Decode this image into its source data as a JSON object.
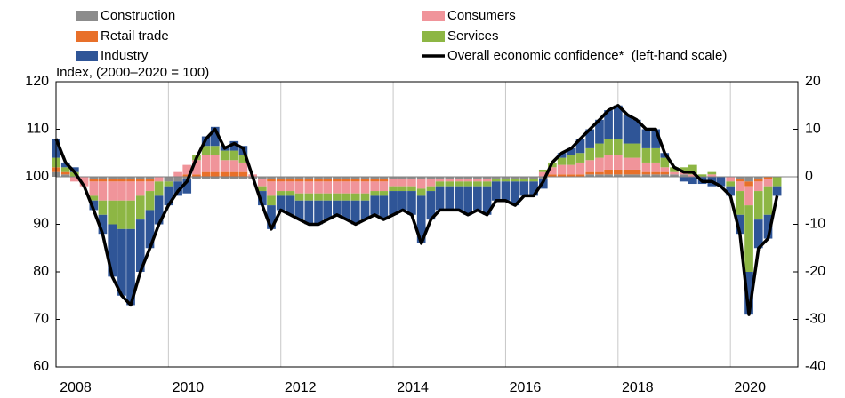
{
  "chart_data": {
    "type": "bar",
    "y_label": "Index, (2000–2020 = 100)",
    "x": [
      2008.0,
      2008.17,
      2008.33,
      2008.5,
      2008.67,
      2008.83,
      2009.0,
      2009.17,
      2009.33,
      2009.5,
      2009.67,
      2009.83,
      2010.0,
      2010.17,
      2010.33,
      2010.5,
      2010.67,
      2010.83,
      2011.0,
      2011.17,
      2011.33,
      2011.5,
      2011.67,
      2011.83,
      2012.0,
      2012.17,
      2012.33,
      2012.5,
      2012.67,
      2012.83,
      2013.0,
      2013.17,
      2013.33,
      2013.5,
      2013.67,
      2013.83,
      2014.0,
      2014.17,
      2014.33,
      2014.5,
      2014.67,
      2014.83,
      2015.0,
      2015.17,
      2015.33,
      2015.5,
      2015.67,
      2015.83,
      2016.0,
      2016.17,
      2016.33,
      2016.5,
      2016.67,
      2016.83,
      2017.0,
      2017.17,
      2017.33,
      2017.5,
      2017.67,
      2017.83,
      2018.0,
      2018.17,
      2018.33,
      2018.5,
      2018.67,
      2018.83,
      2019.0,
      2019.17,
      2019.33,
      2019.5,
      2019.67,
      2019.83,
      2020.0,
      2020.17,
      2020.33,
      2020.5,
      2020.67,
      2020.83
    ],
    "series": [
      {
        "name": "Construction",
        "color": "#8c8c8c",
        "axis": "y2",
        "values": [
          1,
          0.5,
          0,
          0,
          -0.5,
          -0.5,
          -0.5,
          -0.5,
          -0.5,
          -0.5,
          -0.5,
          0,
          -1,
          -1,
          -0.5,
          -0.5,
          -0.5,
          -0.5,
          -0.5,
          -0.5,
          -0.5,
          -0.5,
          -0.5,
          -0.5,
          -0.5,
          -0.5,
          -0.5,
          -0.5,
          -0.5,
          -0.5,
          -0.5,
          -0.5,
          -0.5,
          -0.5,
          -0.5,
          -0.5,
          -0.5,
          -0.5,
          -0.5,
          -0.5,
          -0.5,
          -0.5,
          -0.5,
          -0.5,
          -0.5,
          -0.5,
          -0.5,
          -0.5,
          -0.5,
          -0.5,
          -0.5,
          -0.5,
          -0.5,
          0,
          0,
          0,
          0,
          0.5,
          0.5,
          0.5,
          0.5,
          0.5,
          0.5,
          0.5,
          0.5,
          0.5,
          0.5,
          0.5,
          0,
          0,
          0,
          0,
          0,
          -0.5,
          -1,
          -0.5,
          0,
          0
        ]
      },
      {
        "name": "Retail trade",
        "color": "#e8702a",
        "axis": "y2",
        "values": [
          1,
          0.5,
          0,
          0,
          -0.5,
          -0.5,
          -0.5,
          -0.5,
          -0.5,
          -0.5,
          -0.5,
          0,
          0,
          0,
          0.5,
          0.5,
          1,
          1,
          1,
          1,
          1,
          0,
          0,
          -0.5,
          -0.5,
          -0.5,
          -0.5,
          -0.5,
          -0.5,
          -0.5,
          -0.5,
          -0.5,
          -0.5,
          -0.5,
          -0.5,
          -0.5,
          0,
          0,
          0,
          0,
          0,
          0,
          0,
          0,
          0,
          0,
          0,
          0,
          0,
          0,
          0,
          0,
          0,
          0.5,
          0.5,
          0.5,
          0.5,
          0.5,
          0.5,
          1,
          1,
          1,
          1,
          0.5,
          0.5,
          0.5,
          0,
          0,
          0,
          0,
          0,
          0,
          0,
          -0.5,
          -1,
          -0.5,
          -0.5,
          0
        ]
      },
      {
        "name": "Consumers",
        "color": "#f0949a",
        "axis": "y2",
        "values": [
          0,
          0,
          -1,
          -2,
          -3,
          -4,
          -4,
          -4,
          -4,
          -3,
          -2,
          -1,
          0,
          1,
          2,
          3,
          3.5,
          3.5,
          2.5,
          2.5,
          2,
          0.5,
          -1.5,
          -3,
          -2,
          -2,
          -2.5,
          -2.5,
          -2.5,
          -2.5,
          -2.5,
          -2.5,
          -2.5,
          -2.5,
          -2,
          -2,
          -1.5,
          -1.5,
          -1.5,
          -2,
          -1.5,
          -0.5,
          -0.5,
          -0.5,
          -0.5,
          -0.5,
          -0.5,
          0,
          0,
          0,
          0,
          0,
          1,
          1.5,
          2,
          2,
          2.5,
          2.5,
          3,
          3,
          3,
          2.5,
          2.5,
          2,
          2,
          1,
          0.5,
          0.5,
          0.5,
          0,
          0.5,
          0,
          -1,
          -2,
          -4,
          -2,
          -1.5,
          0
        ]
      },
      {
        "name": "Services",
        "color": "#8db644",
        "axis": "y2",
        "values": [
          2,
          1,
          1,
          0,
          -1,
          -3,
          -5,
          -6,
          -6,
          -5,
          -4,
          -3,
          -1,
          0,
          0,
          1,
          2,
          2,
          2,
          2,
          1.5,
          0,
          -1,
          -2,
          -1,
          -1,
          -1.5,
          -1.5,
          -1.5,
          -1.5,
          -1.5,
          -1.5,
          -1.5,
          -1.5,
          -1,
          -1,
          -1,
          -1,
          -1,
          -1.5,
          -1,
          -1,
          -1,
          -1,
          -1,
          -1,
          -1,
          -0.5,
          -0.5,
          -0.5,
          -0.5,
          -0.5,
          0.5,
          1,
          1.5,
          2,
          2,
          2.5,
          3,
          3.5,
          3.5,
          3,
          3,
          3,
          3,
          2,
          1,
          1,
          2,
          0.5,
          0.5,
          0,
          -1,
          -5,
          -14,
          -6,
          -6,
          -2
        ]
      },
      {
        "name": "Industry",
        "color": "#2f5597",
        "axis": "y2",
        "values": [
          4,
          1,
          1,
          0,
          -2,
          -4,
          -11,
          -14,
          -16,
          -11,
          -8,
          -6,
          -4,
          -3,
          -3,
          0,
          2,
          4,
          1,
          2,
          2,
          0,
          -3,
          -5,
          -3,
          -4,
          -4,
          -5,
          -5,
          -4,
          -3,
          -4,
          -5,
          -4,
          -4,
          -5,
          -5,
          -4,
          -5,
          -10,
          -6,
          -5,
          -5,
          -5,
          -6,
          -5,
          -6,
          -4,
          -4,
          -5,
          -3,
          -3,
          -2,
          0,
          1,
          1.5,
          3,
          4,
          5,
          6,
          7,
          6,
          5,
          4,
          4,
          1,
          0,
          -1,
          -1.5,
          -1.5,
          -2,
          -2,
          -2,
          -4,
          -9,
          -6,
          -5,
          -2
        ]
      },
      {
        "name": "Overall economic confidence*  (left-hand scale)",
        "color": "#000000",
        "kind": "line",
        "values": [
          108,
          103,
          101,
          98,
          93,
          88,
          79,
          75,
          73,
          80,
          85,
          90,
          94,
          97,
          99,
          104,
          108,
          110,
          106,
          107,
          106,
          100,
          94,
          89,
          93,
          92,
          91,
          90,
          90,
          91,
          92,
          91,
          90,
          91,
          92,
          91,
          92,
          93,
          92,
          86,
          91,
          93,
          93,
          93,
          92,
          93,
          92,
          95,
          95,
          94,
          96,
          96,
          99,
          103,
          105,
          106,
          108,
          110,
          112,
          114,
          115,
          113,
          112,
          110,
          110,
          105,
          102,
          101,
          101,
          99,
          99,
          98,
          96,
          88,
          71,
          85,
          87,
          96
        ]
      }
    ],
    "xlim": [
      2008,
      2021.2
    ],
    "xticks": [
      2008,
      2010,
      2012,
      2014,
      2016,
      2018,
      2020
    ],
    "ylim": [
      60,
      120
    ],
    "yticks": [
      60,
      70,
      80,
      90,
      100,
      110,
      120
    ],
    "y2lim": [
      -40,
      20
    ],
    "y2ticks": [
      -40,
      -30,
      -20,
      -10,
      0,
      10,
      20
    ],
    "grid": true
  }
}
